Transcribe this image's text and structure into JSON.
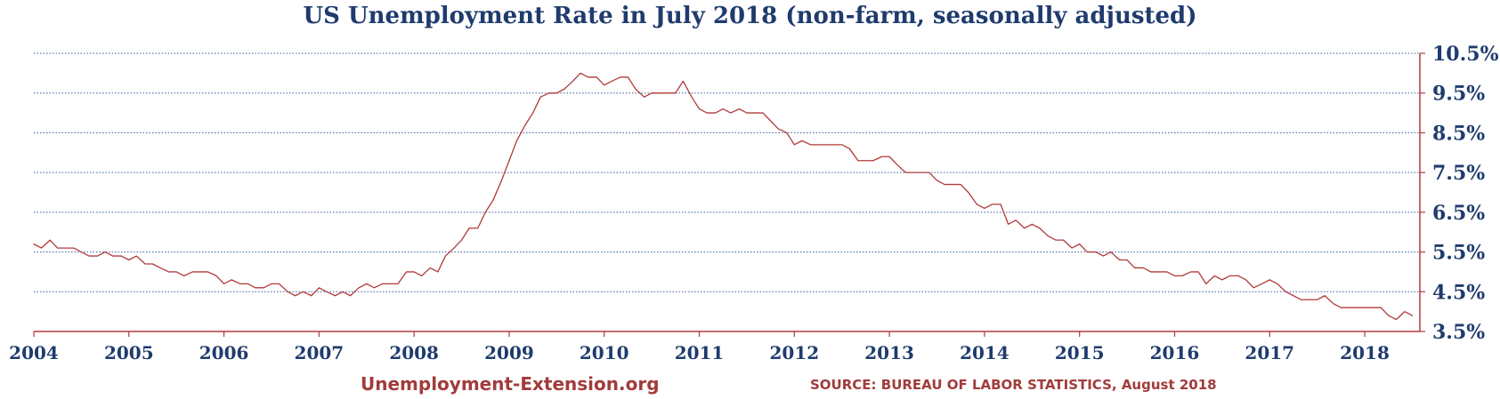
{
  "chart_data": {
    "type": "line",
    "title": "US Unemployment Rate in July 2018 (non-farm, seasonally adjusted)",
    "xlabel": "",
    "ylabel": "",
    "y_axis_position": "right",
    "grid": "horizontal dotted",
    "xlim": [
      2004,
      2018.58
    ],
    "ylim": [
      3.5,
      10.5
    ],
    "x_ticks": [
      2004,
      2005,
      2006,
      2007,
      2008,
      2009,
      2010,
      2011,
      2012,
      2013,
      2014,
      2015,
      2016,
      2017,
      2018
    ],
    "x_tick_labels": [
      "2004",
      "2005",
      "2006",
      "2007",
      "2008",
      "2009",
      "2010",
      "2011",
      "2012",
      "2013",
      "2014",
      "2015",
      "2016",
      "2017",
      "2018"
    ],
    "y_ticks": [
      3.5,
      4.5,
      5.5,
      6.5,
      7.5,
      8.5,
      9.5,
      10.5
    ],
    "y_tick_labels": [
      "3.5%",
      "4.5%",
      "5.5%",
      "6.5%",
      "7.5%",
      "8.5%",
      "9.5%",
      "10.5%"
    ],
    "series": [
      {
        "color": "#b03a3a",
        "x": [
          2004.0,
          2004.08,
          2004.17,
          2004.25,
          2004.33,
          2004.42,
          2004.5,
          2004.58,
          2004.67,
          2004.75,
          2004.83,
          2004.92,
          2005.0,
          2005.08,
          2005.17,
          2005.25,
          2005.33,
          2005.42,
          2005.5,
          2005.58,
          2005.67,
          2005.75,
          2005.83,
          2005.92,
          2006.0,
          2006.08,
          2006.17,
          2006.25,
          2006.33,
          2006.42,
          2006.5,
          2006.58,
          2006.67,
          2006.75,
          2006.83,
          2006.92,
          2007.0,
          2007.08,
          2007.17,
          2007.25,
          2007.33,
          2007.42,
          2007.5,
          2007.58,
          2007.67,
          2007.75,
          2007.83,
          2007.92,
          2008.0,
          2008.08,
          2008.17,
          2008.25,
          2008.33,
          2008.42,
          2008.5,
          2008.58,
          2008.67,
          2008.75,
          2008.83,
          2008.92,
          2009.0,
          2009.08,
          2009.17,
          2009.25,
          2009.33,
          2009.42,
          2009.5,
          2009.58,
          2009.67,
          2009.75,
          2009.83,
          2009.92,
          2010.0,
          2010.08,
          2010.17,
          2010.25,
          2010.33,
          2010.42,
          2010.5,
          2010.58,
          2010.67,
          2010.75,
          2010.83,
          2010.92,
          2011.0,
          2011.08,
          2011.17,
          2011.25,
          2011.33,
          2011.42,
          2011.5,
          2011.58,
          2011.67,
          2011.75,
          2011.83,
          2011.92,
          2012.0,
          2012.08,
          2012.17,
          2012.25,
          2012.33,
          2012.42,
          2012.5,
          2012.58,
          2012.67,
          2012.75,
          2012.83,
          2012.92,
          2013.0,
          2013.08,
          2013.17,
          2013.25,
          2013.33,
          2013.42,
          2013.5,
          2013.58,
          2013.67,
          2013.75,
          2013.83,
          2013.92,
          2014.0,
          2014.08,
          2014.17,
          2014.25,
          2014.33,
          2014.42,
          2014.5,
          2014.58,
          2014.67,
          2014.75,
          2014.83,
          2014.92,
          2015.0,
          2015.08,
          2015.17,
          2015.25,
          2015.33,
          2015.42,
          2015.5,
          2015.58,
          2015.67,
          2015.75,
          2015.83,
          2015.92,
          2016.0,
          2016.08,
          2016.17,
          2016.25,
          2016.33,
          2016.42,
          2016.5,
          2016.58,
          2016.67,
          2016.75,
          2016.83,
          2016.92,
          2017.0,
          2017.08,
          2017.17,
          2017.25,
          2017.33,
          2017.42,
          2017.5,
          2017.58,
          2017.67,
          2017.75,
          2017.83,
          2017.92,
          2018.0,
          2018.08,
          2018.17,
          2018.25,
          2018.33,
          2018.42,
          2018.5
        ],
        "values": [
          5.7,
          5.6,
          5.8,
          5.6,
          5.6,
          5.6,
          5.5,
          5.4,
          5.4,
          5.5,
          5.4,
          5.4,
          5.3,
          5.4,
          5.2,
          5.2,
          5.1,
          5.0,
          5.0,
          4.9,
          5.0,
          5.0,
          5.0,
          4.9,
          4.7,
          4.8,
          4.7,
          4.7,
          4.6,
          4.6,
          4.7,
          4.7,
          4.5,
          4.4,
          4.5,
          4.4,
          4.6,
          4.5,
          4.4,
          4.5,
          4.4,
          4.6,
          4.7,
          4.6,
          4.7,
          4.7,
          4.7,
          5.0,
          5.0,
          4.9,
          5.1,
          5.0,
          5.4,
          5.6,
          5.8,
          6.1,
          6.1,
          6.5,
          6.8,
          7.3,
          7.8,
          8.3,
          8.7,
          9.0,
          9.4,
          9.5,
          9.5,
          9.6,
          9.8,
          10.0,
          9.9,
          9.9,
          9.7,
          9.8,
          9.9,
          9.9,
          9.6,
          9.4,
          9.5,
          9.5,
          9.5,
          9.5,
          9.8,
          9.4,
          9.1,
          9.0,
          9.0,
          9.1,
          9.0,
          9.1,
          9.0,
          9.0,
          9.0,
          8.8,
          8.6,
          8.5,
          8.2,
          8.3,
          8.2,
          8.2,
          8.2,
          8.2,
          8.2,
          8.1,
          7.8,
          7.8,
          7.8,
          7.9,
          7.9,
          7.7,
          7.5,
          7.5,
          7.5,
          7.5,
          7.3,
          7.2,
          7.2,
          7.2,
          7.0,
          6.7,
          6.6,
          6.7,
          6.7,
          6.2,
          6.3,
          6.1,
          6.2,
          6.1,
          5.9,
          5.8,
          5.8,
          5.6,
          5.7,
          5.5,
          5.5,
          5.4,
          5.5,
          5.3,
          5.3,
          5.1,
          5.1,
          5.0,
          5.0,
          5.0,
          4.9,
          4.9,
          5.0,
          5.0,
          4.7,
          4.9,
          4.8,
          4.9,
          4.9,
          4.8,
          4.6,
          4.7,
          4.8,
          4.7,
          4.5,
          4.4,
          4.3,
          4.3,
          4.3,
          4.4,
          4.2,
          4.1,
          4.1,
          4.1,
          4.1,
          4.1,
          4.1,
          3.9,
          3.8,
          4.0,
          3.9
        ]
      }
    ]
  },
  "footer": {
    "website": "Unemployment-Extension.org",
    "source": "SOURCE: BUREAU OF LABOR STATISTICS, August 2018"
  },
  "colors": {
    "line": "#b03a3a",
    "grid": "#3a5a9e",
    "axis": "#b03a3a",
    "text": "#1f3b6e",
    "footer": "#a23b3b"
  }
}
